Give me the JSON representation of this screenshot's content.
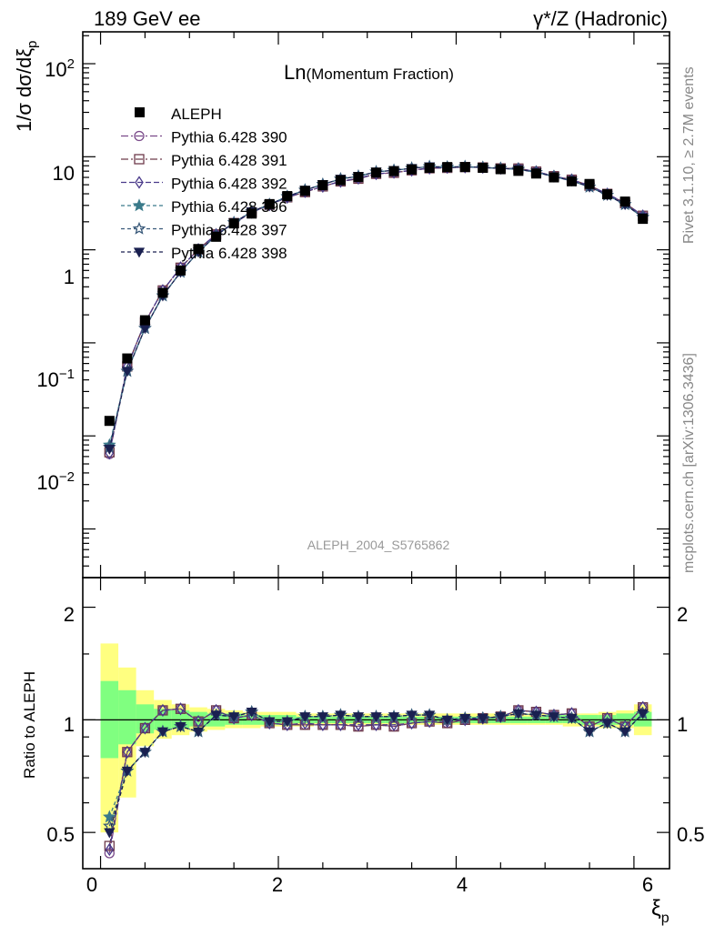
{
  "header": {
    "left": "189 GeV ee",
    "right": "γ*/Z (Hadronic)"
  },
  "plot_title": "Ln(Momentum Fraction)",
  "side_text": {
    "rivet": "Rivet 3.1.10, ≥ 2.7M events",
    "mcplots": "mcplots.cern.ch [arXiv:1306.3436]"
  },
  "analysis_id": "ALEPH_2004_S5765862",
  "axes": {
    "main_ylabel": "1/σ dσ/dξ_p",
    "ratio_ylabel": "Ratio to ALEPH",
    "xlabel": "ξ_p",
    "main_yticks": [
      "10^-2",
      "10^-1",
      "1",
      "10",
      "10^2"
    ],
    "ratio_yticks": [
      "0.5",
      "1",
      "2"
    ],
    "xticks": [
      "0",
      "2",
      "4",
      "6"
    ]
  },
  "chart_data": {
    "type": "scatter",
    "x": [
      0.1,
      0.3,
      0.5,
      0.7,
      0.9,
      1.1,
      1.3,
      1.5,
      1.7,
      1.9,
      2.1,
      2.3,
      2.5,
      2.7,
      2.9,
      3.1,
      3.3,
      3.5,
      3.7,
      3.9,
      4.1,
      4.3,
      4.5,
      4.7,
      4.9,
      5.1,
      5.3,
      5.5,
      5.7,
      5.9,
      6.1
    ],
    "xlim": [
      -0.2,
      6.4
    ],
    "main_ylim": [
      0.0003,
      220
    ],
    "main_yscale": "log",
    "ratio_ylim": [
      0.4,
      2.4
    ],
    "ratio_yscale": "log",
    "data": {
      "name": "ALEPH",
      "color": "#000000",
      "values": [
        0.0145,
        0.068,
        0.175,
        0.345,
        0.6,
        1.02,
        1.38,
        1.92,
        2.45,
        3.1,
        3.78,
        4.3,
        4.95,
        5.6,
        6.05,
        6.75,
        7.0,
        7.3,
        7.6,
        7.75,
        7.75,
        7.6,
        7.35,
        7.05,
        6.6,
        6.0,
        5.45,
        5.1,
        3.95,
        3.3,
        2.15
      ]
    },
    "band_edges": [
      0.0,
      0.2,
      0.4,
      0.6,
      0.8,
      1.0,
      1.2,
      1.4,
      1.6,
      1.8,
      2.0,
      2.2,
      2.4,
      2.6,
      2.8,
      3.0,
      3.2,
      3.4,
      3.6,
      3.8,
      4.0,
      4.2,
      4.4,
      4.6,
      4.8,
      5.0,
      5.2,
      5.4,
      5.6,
      5.8,
      6.0,
      6.2
    ],
    "band_inner": [
      [
        0.79,
        1.27
      ],
      [
        0.86,
        1.2
      ],
      [
        0.92,
        1.1
      ],
      [
        0.94,
        1.07
      ],
      [
        0.95,
        1.06
      ],
      [
        0.96,
        1.05
      ],
      [
        0.96,
        1.04
      ],
      [
        0.97,
        1.04
      ],
      [
        0.97,
        1.03
      ],
      [
        0.97,
        1.03
      ],
      [
        0.98,
        1.03
      ],
      [
        0.98,
        1.02
      ],
      [
        0.98,
        1.02
      ],
      [
        0.98,
        1.02
      ],
      [
        0.98,
        1.02
      ],
      [
        0.98,
        1.02
      ],
      [
        0.98,
        1.02
      ],
      [
        0.98,
        1.02
      ],
      [
        0.98,
        1.02
      ],
      [
        0.98,
        1.02
      ],
      [
        0.98,
        1.02
      ],
      [
        0.98,
        1.02
      ],
      [
        0.98,
        1.02
      ],
      [
        0.98,
        1.02
      ],
      [
        0.98,
        1.02
      ],
      [
        0.98,
        1.03
      ],
      [
        0.98,
        1.03
      ],
      [
        0.97,
        1.03
      ],
      [
        0.97,
        1.03
      ],
      [
        0.97,
        1.04
      ],
      [
        0.96,
        1.05
      ]
    ],
    "band_outer": [
      [
        0.5,
        1.6
      ],
      [
        0.62,
        1.38
      ],
      [
        0.85,
        1.2
      ],
      [
        0.89,
        1.13
      ],
      [
        0.91,
        1.1
      ],
      [
        0.93,
        1.08
      ],
      [
        0.94,
        1.07
      ],
      [
        0.95,
        1.06
      ],
      [
        0.95,
        1.05
      ],
      [
        0.96,
        1.05
      ],
      [
        0.96,
        1.05
      ],
      [
        0.96,
        1.04
      ],
      [
        0.97,
        1.04
      ],
      [
        0.97,
        1.04
      ],
      [
        0.97,
        1.04
      ],
      [
        0.97,
        1.04
      ],
      [
        0.97,
        1.04
      ],
      [
        0.97,
        1.04
      ],
      [
        0.97,
        1.04
      ],
      [
        0.97,
        1.04
      ],
      [
        0.97,
        1.04
      ],
      [
        0.97,
        1.04
      ],
      [
        0.97,
        1.04
      ],
      [
        0.97,
        1.04
      ],
      [
        0.97,
        1.04
      ],
      [
        0.97,
        1.04
      ],
      [
        0.96,
        1.04
      ],
      [
        0.96,
        1.04
      ],
      [
        0.95,
        1.05
      ],
      [
        0.95,
        1.06
      ],
      [
        0.91,
        1.1
      ]
    ],
    "band_colors": {
      "outer": "#ffff80",
      "inner": "#80ff80"
    },
    "series": [
      {
        "name": "Pythia 6.428 390",
        "color": "#7a4a8a",
        "marker": "circle-open",
        "dash": "8,3,2,3",
        "ratio": [
          0.44,
          0.82,
          0.95,
          1.06,
          1.07,
          0.99,
          1.06,
          1.01,
          1.03,
          0.98,
          0.97,
          0.97,
          0.97,
          0.97,
          0.96,
          0.97,
          0.96,
          0.98,
          0.99,
          0.98,
          1.0,
          1.01,
          1.02,
          1.06,
          1.05,
          1.03,
          1.04,
          0.96,
          1.01,
          0.96,
          1.08
        ]
      },
      {
        "name": "Pythia 6.428 391",
        "color": "#6e3a4a",
        "marker": "square-open",
        "dash": "8,3,2,3",
        "ratio": [
          0.46,
          0.82,
          0.95,
          1.06,
          1.07,
          0.99,
          1.06,
          1.01,
          1.03,
          0.98,
          0.97,
          0.97,
          0.97,
          0.97,
          0.96,
          0.97,
          0.96,
          0.98,
          0.99,
          0.98,
          1.0,
          1.01,
          1.02,
          1.06,
          1.05,
          1.03,
          1.04,
          0.96,
          1.01,
          0.96,
          1.08
        ]
      },
      {
        "name": "Pythia 6.428 392",
        "color": "#4a3a8a",
        "marker": "diamond-open",
        "dash": "6,3",
        "ratio": [
          0.45,
          0.82,
          0.95,
          1.06,
          1.07,
          0.99,
          1.06,
          1.01,
          1.03,
          0.98,
          0.97,
          0.98,
          0.97,
          0.97,
          0.97,
          0.97,
          0.97,
          0.98,
          0.99,
          0.99,
          1.0,
          1.01,
          1.02,
          1.06,
          1.05,
          1.03,
          1.04,
          0.96,
          1.01,
          0.96,
          1.08
        ]
      },
      {
        "name": "Pythia 6.428 396",
        "color": "#3a7a8a",
        "marker": "star-filled",
        "dash": "4,3",
        "ratio": [
          0.55,
          0.73,
          0.82,
          0.93,
          0.96,
          0.93,
          1.03,
          1.02,
          1.05,
          0.99,
          0.99,
          1.02,
          1.02,
          1.03,
          1.02,
          1.02,
          1.02,
          1.03,
          1.03,
          1.0,
          1.01,
          1.01,
          1.02,
          1.04,
          1.03,
          1.02,
          1.01,
          0.93,
          0.98,
          0.93,
          1.04
        ]
      },
      {
        "name": "Pythia 6.428 397",
        "color": "#3a5a7a",
        "marker": "star-open",
        "dash": "4,3",
        "ratio": [
          0.52,
          0.73,
          0.82,
          0.93,
          0.96,
          0.93,
          1.03,
          1.02,
          1.05,
          0.99,
          0.99,
          1.02,
          1.02,
          1.03,
          1.02,
          1.02,
          1.02,
          1.03,
          1.03,
          1.0,
          1.01,
          1.01,
          1.02,
          1.04,
          1.03,
          1.02,
          1.01,
          0.93,
          0.98,
          0.93,
          1.04
        ]
      },
      {
        "name": "Pythia 6.428 398",
        "color": "#1a2050",
        "marker": "triangle-down-filled",
        "dash": "4,3",
        "ratio": [
          0.5,
          0.73,
          0.82,
          0.93,
          0.96,
          0.93,
          1.03,
          1.02,
          1.05,
          0.99,
          0.99,
          1.02,
          1.02,
          1.03,
          1.02,
          1.02,
          1.02,
          1.03,
          1.03,
          1.0,
          1.01,
          1.01,
          1.02,
          1.04,
          1.03,
          1.02,
          1.01,
          0.93,
          0.98,
          0.93,
          1.04
        ]
      }
    ]
  }
}
